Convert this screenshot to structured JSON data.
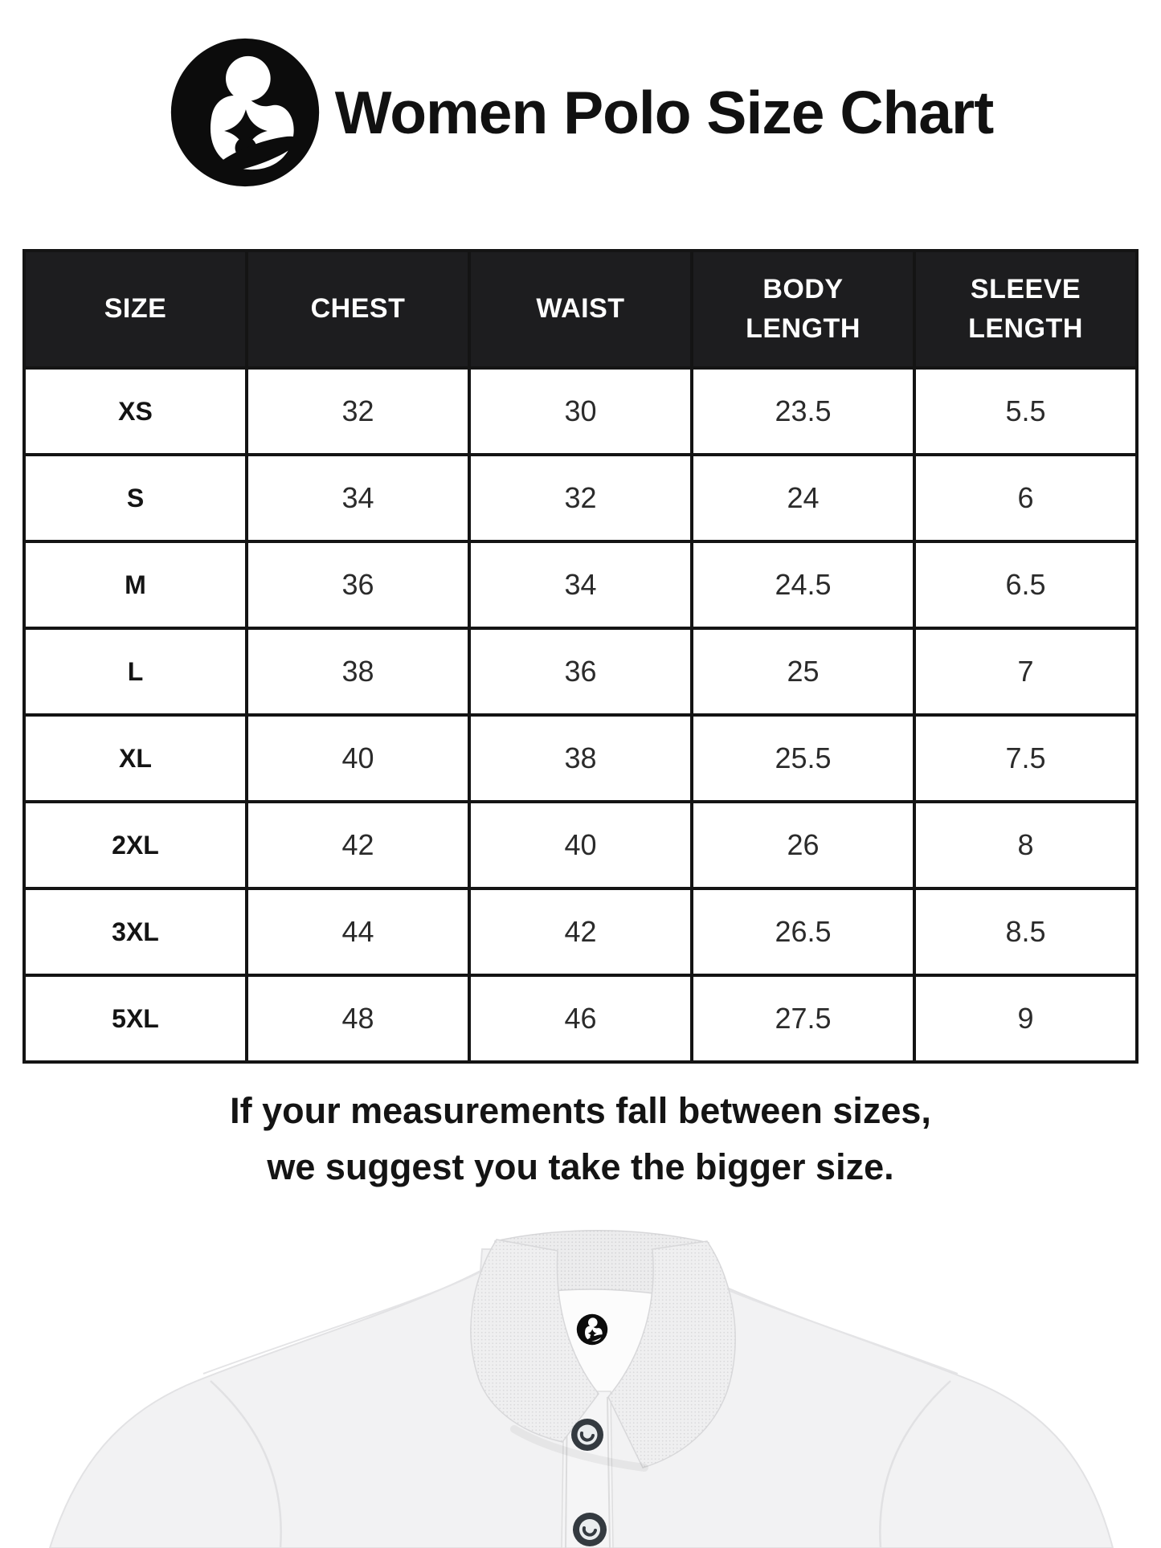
{
  "header": {
    "title": "Women Polo Size Chart",
    "logo_icon": "mother-baby-logo"
  },
  "table": {
    "columns": [
      "SIZE",
      "CHEST",
      "WAIST",
      "BODY LENGTH",
      "SLEEVE LENGTH"
    ],
    "rows": [
      [
        "XS",
        "32",
        "30",
        "23.5",
        "5.5"
      ],
      [
        "S",
        "34",
        "32",
        "24",
        "6"
      ],
      [
        "M",
        "36",
        "34",
        "24.5",
        "6.5"
      ],
      [
        "L",
        "38",
        "36",
        "25",
        "7"
      ],
      [
        "XL",
        "40",
        "38",
        "25.5",
        "7.5"
      ],
      [
        "2XL",
        "42",
        "40",
        "26",
        "8"
      ],
      [
        "3XL",
        "44",
        "42",
        "26.5",
        "8.5"
      ],
      [
        "5XL",
        "48",
        "46",
        "27.5",
        "9"
      ]
    ]
  },
  "note": {
    "line1": "If your measurements fall between sizes,",
    "line2": "we suggest you take the bigger size."
  },
  "product_image": {
    "label_icon": "mother-baby-logo"
  },
  "colors": {
    "header_bg": "#1d1d1f",
    "table_border": "#141414",
    "logo": "#0c0c0c",
    "shirt": "#f2f2f3",
    "collar": "#ededee"
  }
}
